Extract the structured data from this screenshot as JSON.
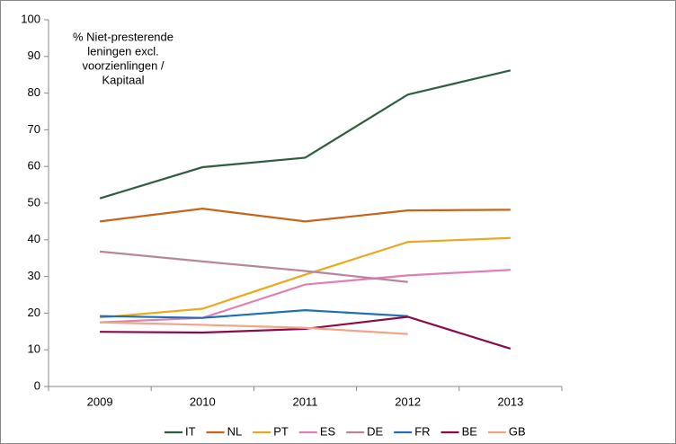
{
  "chart_data": {
    "type": "line",
    "annotation_lines": [
      "% Niet-presterende",
      "leningen excl.",
      "voorzienlingen /",
      "Kapitaal"
    ],
    "categories": [
      "2009",
      "2010",
      "2011",
      "2012",
      "2013"
    ],
    "series": [
      {
        "name": "IT",
        "color": "#2e5e3e",
        "values": [
          51.3,
          59.8,
          62.4,
          79.6,
          86.2
        ]
      },
      {
        "name": "NL",
        "color": "#c5651b",
        "values": [
          45.0,
          48.5,
          45.0,
          48.0,
          48.2
        ]
      },
      {
        "name": "PT",
        "color": "#e9a820",
        "values": [
          18.8,
          21.2,
          30.5,
          39.4,
          40.5
        ]
      },
      {
        "name": "ES",
        "color": "#e07fb5",
        "values": [
          17.5,
          18.7,
          27.8,
          30.3,
          31.8
        ]
      },
      {
        "name": "DE",
        "color": "#b9859d",
        "values": [
          36.8,
          34.1,
          31.5,
          28.5,
          null
        ]
      },
      {
        "name": "FR",
        "color": "#1f6fb5",
        "values": [
          19.2,
          18.7,
          20.8,
          19.2,
          null
        ]
      },
      {
        "name": "BE",
        "color": "#8b0a47",
        "values": [
          14.9,
          14.7,
          15.7,
          19.0,
          10.3
        ]
      },
      {
        "name": "GB",
        "color": "#f0a58a",
        "values": [
          17.5,
          16.8,
          16.0,
          14.3,
          null
        ]
      }
    ],
    "ylim": [
      0,
      100
    ],
    "yticks": [
      0,
      10,
      20,
      30,
      40,
      50,
      60,
      70,
      80,
      90,
      100
    ],
    "grid": false,
    "legend": "bottom"
  }
}
